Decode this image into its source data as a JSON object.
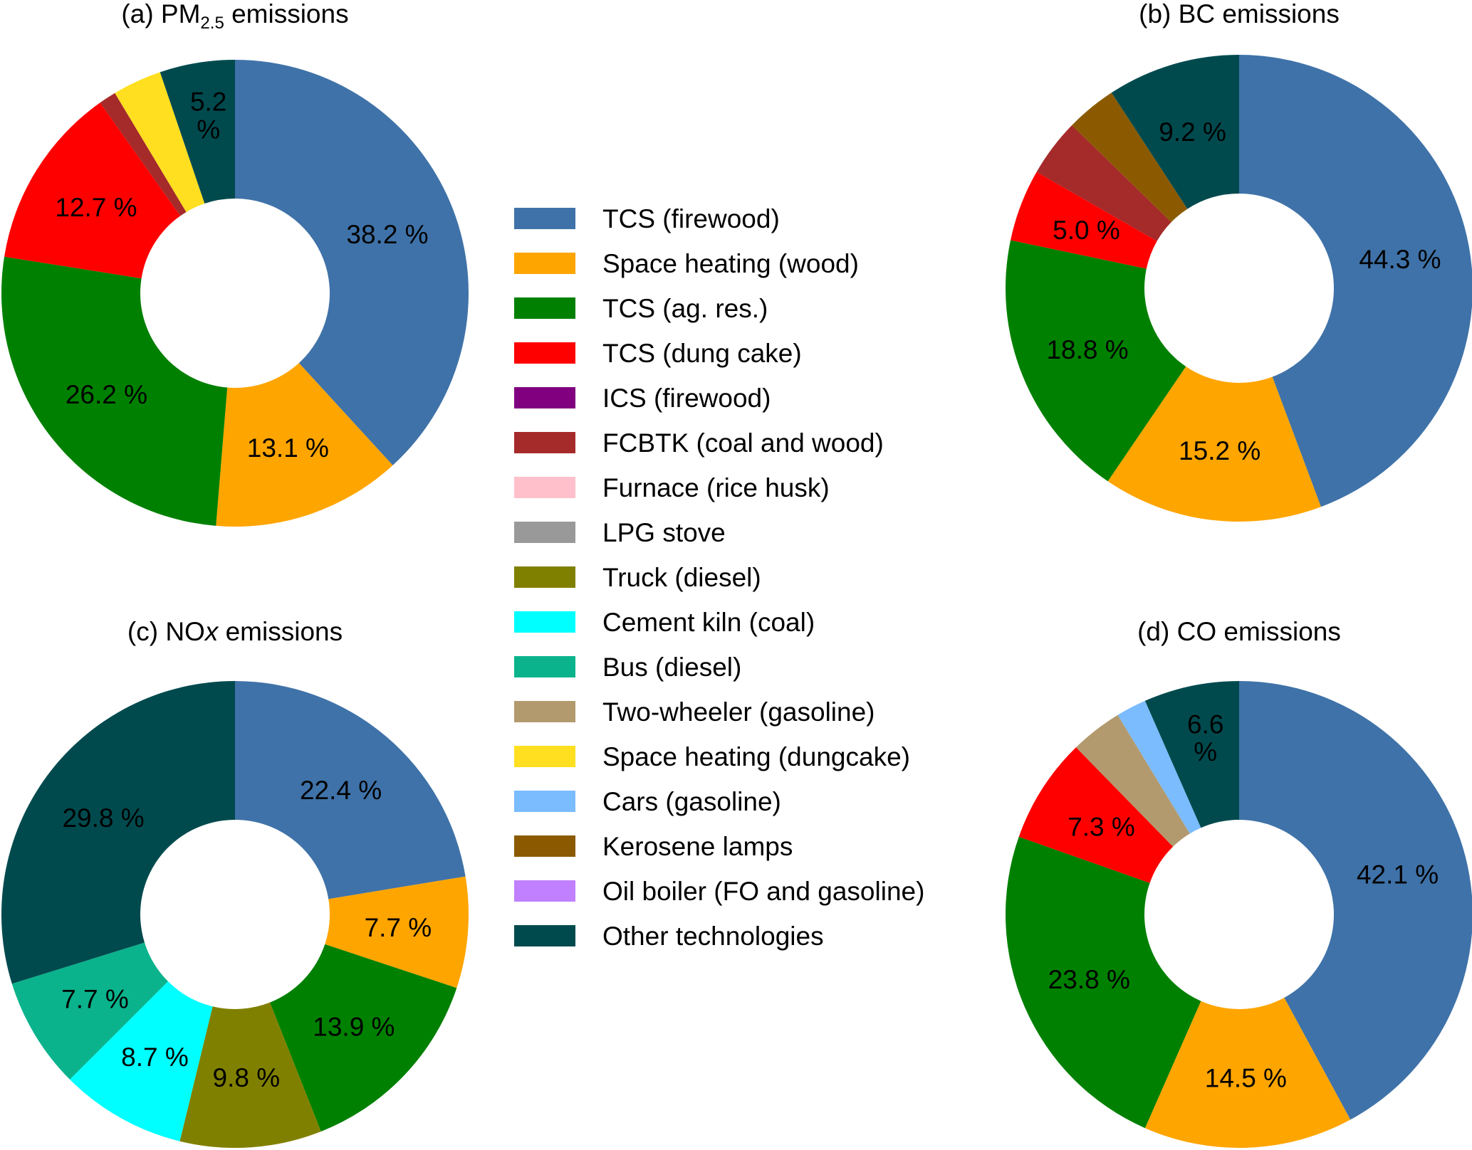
{
  "chart_data": [
    {
      "type": "pie",
      "title": {
        "prefix": "(a) PM",
        "sub": "2.5",
        "sub_italic": false,
        "suffix": " emissions"
      },
      "slices": [
        {
          "category": "TCS (firewood)",
          "value": 38.2,
          "label": "38.2 %"
        },
        {
          "category": "Space heating (wood)",
          "value": 13.1,
          "label": "13.1 %"
        },
        {
          "category": "TCS (ag. res.)",
          "value": 26.2,
          "label": "26.2 %"
        },
        {
          "category": "TCS (dung cake)",
          "value": 12.7,
          "label": "12.7 %"
        },
        {
          "category": "FCBTK (coal and wood)",
          "value": 1.2,
          "label": ""
        },
        {
          "category": "Space heating (dungcake)",
          "value": 3.4,
          "label": ""
        },
        {
          "category": "Other technologies",
          "value": 5.2,
          "label": "5.2 %"
        }
      ]
    },
    {
      "type": "pie",
      "title": {
        "prefix": "(b) BC emissions",
        "sub": "",
        "sub_italic": false,
        "suffix": ""
      },
      "slices": [
        {
          "category": "TCS (firewood)",
          "value": 44.3,
          "label": "44.3 %"
        },
        {
          "category": "Space heating (wood)",
          "value": 15.2,
          "label": "15.2 %"
        },
        {
          "category": "TCS (ag. res.)",
          "value": 18.8,
          "label": "18.8 %"
        },
        {
          "category": "TCS (dung cake)",
          "value": 5.0,
          "label": "5.0 %"
        },
        {
          "category": "FCBTK (coal and wood)",
          "value": 4.0,
          "label": ""
        },
        {
          "category": "Kerosene lamps",
          "value": 3.5,
          "label": ""
        },
        {
          "category": "Other technologies",
          "value": 9.2,
          "label": "9.2 %"
        }
      ]
    },
    {
      "type": "pie",
      "title": {
        "prefix": "(c) NO",
        "sub": "X",
        "sub_italic": true,
        "suffix": " emissions"
      },
      "slices": [
        {
          "category": "TCS (firewood)",
          "value": 22.4,
          "label": "22.4 %"
        },
        {
          "category": "Space heating (wood)",
          "value": 7.7,
          "label": "7.7 %"
        },
        {
          "category": "TCS (ag. res.)",
          "value": 13.9,
          "label": "13.9 %"
        },
        {
          "category": "Truck (diesel)",
          "value": 9.8,
          "label": "9.8 %"
        },
        {
          "category": "Cement kiln (coal)",
          "value": 8.7,
          "label": "8.7 %"
        },
        {
          "category": "Bus (diesel)",
          "value": 7.7,
          "label": "7.7 %"
        },
        {
          "category": "Other technologies",
          "value": 29.8,
          "label": "29.8 %"
        }
      ]
    },
    {
      "type": "pie",
      "title": {
        "prefix": "(d) CO emissions",
        "sub": "",
        "sub_italic": false,
        "suffix": ""
      },
      "slices": [
        {
          "category": "TCS (firewood)",
          "value": 42.1,
          "label": "42.1 %"
        },
        {
          "category": "Space heating (wood)",
          "value": 14.5,
          "label": "14.5 %"
        },
        {
          "category": "TCS (ag. res.)",
          "value": 23.8,
          "label": "23.8 %"
        },
        {
          "category": "TCS (dung cake)",
          "value": 7.3,
          "label": "7.3 %"
        },
        {
          "category": "Two-wheeler (gasoline)",
          "value": 3.6,
          "label": ""
        },
        {
          "category": "Cars (gasoline)",
          "value": 2.1,
          "label": ""
        },
        {
          "category": "Other technologies",
          "value": 6.6,
          "label": "6.6 %"
        }
      ]
    }
  ],
  "legend": {
    "placement": "center",
    "items": [
      {
        "label": "TCS (firewood)",
        "color": "#3f72a8"
      },
      {
        "label": "Space heating (wood)",
        "color": "#ffa500"
      },
      {
        "label": "TCS (ag. res.)",
        "color": "#008000"
      },
      {
        "label": "TCS (dung cake)",
        "color": "#ff0000"
      },
      {
        "label": "ICS (firewood)",
        "color": "#800080"
      },
      {
        "label": "FCBTK (coal and wood)",
        "color": "#a52a2a"
      },
      {
        "label": "Furnace (rice husk)",
        "color": "#ffc0cb"
      },
      {
        "label": "LPG stove",
        "color": "#999999"
      },
      {
        "label": "Truck (diesel)",
        "color": "#808000"
      },
      {
        "label": "Cement kiln (coal)",
        "color": "#00ffff"
      },
      {
        "label": "Bus (diesel)",
        "color": "#0ab38c"
      },
      {
        "label": "Two-wheeler (gasoline)",
        "color": "#b39a6e"
      },
      {
        "label": "Space heating (dungcake)",
        "color": "#ffdf20"
      },
      {
        "label": "Cars (gasoline)",
        "color": "#7bbcff"
      },
      {
        "label": "Kerosene lamps",
        "color": "#8b5a00"
      },
      {
        "label": "Oil boiler (FO and gasoline)",
        "color": "#c080ff"
      },
      {
        "label": "Other technologies",
        "color": "#004a4e"
      }
    ]
  }
}
